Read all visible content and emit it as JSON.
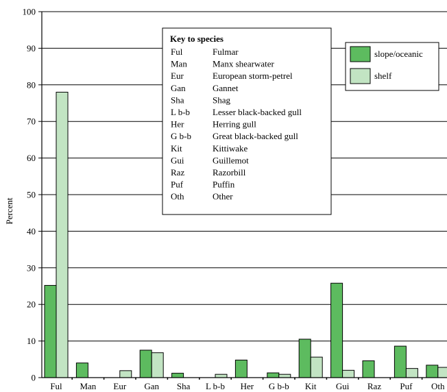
{
  "chart_data": {
    "type": "bar",
    "title": "",
    "xlabel": "",
    "ylabel": "Percent",
    "ylim": [
      0,
      100
    ],
    "yticks": [
      0,
      10,
      20,
      30,
      40,
      50,
      60,
      70,
      80,
      90,
      100
    ],
    "categories": [
      "Ful",
      "Man",
      "Eur",
      "Gan",
      "Sha",
      "L b-b",
      "Her",
      "G b-b",
      "Kit",
      "Gui",
      "Raz",
      "Puf",
      "Oth"
    ],
    "series": [
      {
        "name": "slope/oceanic",
        "color": "#5dbb5f",
        "values": [
          25.2,
          4.0,
          0.0,
          7.5,
          1.2,
          0.0,
          4.8,
          1.3,
          10.5,
          25.8,
          4.6,
          8.6,
          3.4
        ]
      },
      {
        "name": "shelf",
        "color": "#c2e4c3",
        "values": [
          78.0,
          0.0,
          1.9,
          6.8,
          0.0,
          0.9,
          0.0,
          0.9,
          5.6,
          2.0,
          0.0,
          2.5,
          2.8
        ]
      }
    ],
    "grid": "horizontal",
    "legend_position": "top-right",
    "key": {
      "title": "Key to species",
      "entries": [
        {
          "code": "Ful",
          "name": "Fulmar"
        },
        {
          "code": "Man",
          "name": "Manx shearwater"
        },
        {
          "code": "Eur",
          "name": "European storm-petrel"
        },
        {
          "code": "Gan",
          "name": "Gannet"
        },
        {
          "code": "Sha",
          "name": "Shag"
        },
        {
          "code": "L b-b",
          "name": "Lesser black-backed gull"
        },
        {
          "code": "Her",
          "name": "Herring gull"
        },
        {
          "code": "G b-b",
          "name": "Great black-backed gull"
        },
        {
          "code": "Kit",
          "name": "Kittiwake"
        },
        {
          "code": "Gui",
          "name": "Guillemot"
        },
        {
          "code": "Raz",
          "name": "Razorbill"
        },
        {
          "code": "Puf",
          "name": "Puffin"
        },
        {
          "code": "Oth",
          "name": "Other"
        }
      ]
    }
  }
}
